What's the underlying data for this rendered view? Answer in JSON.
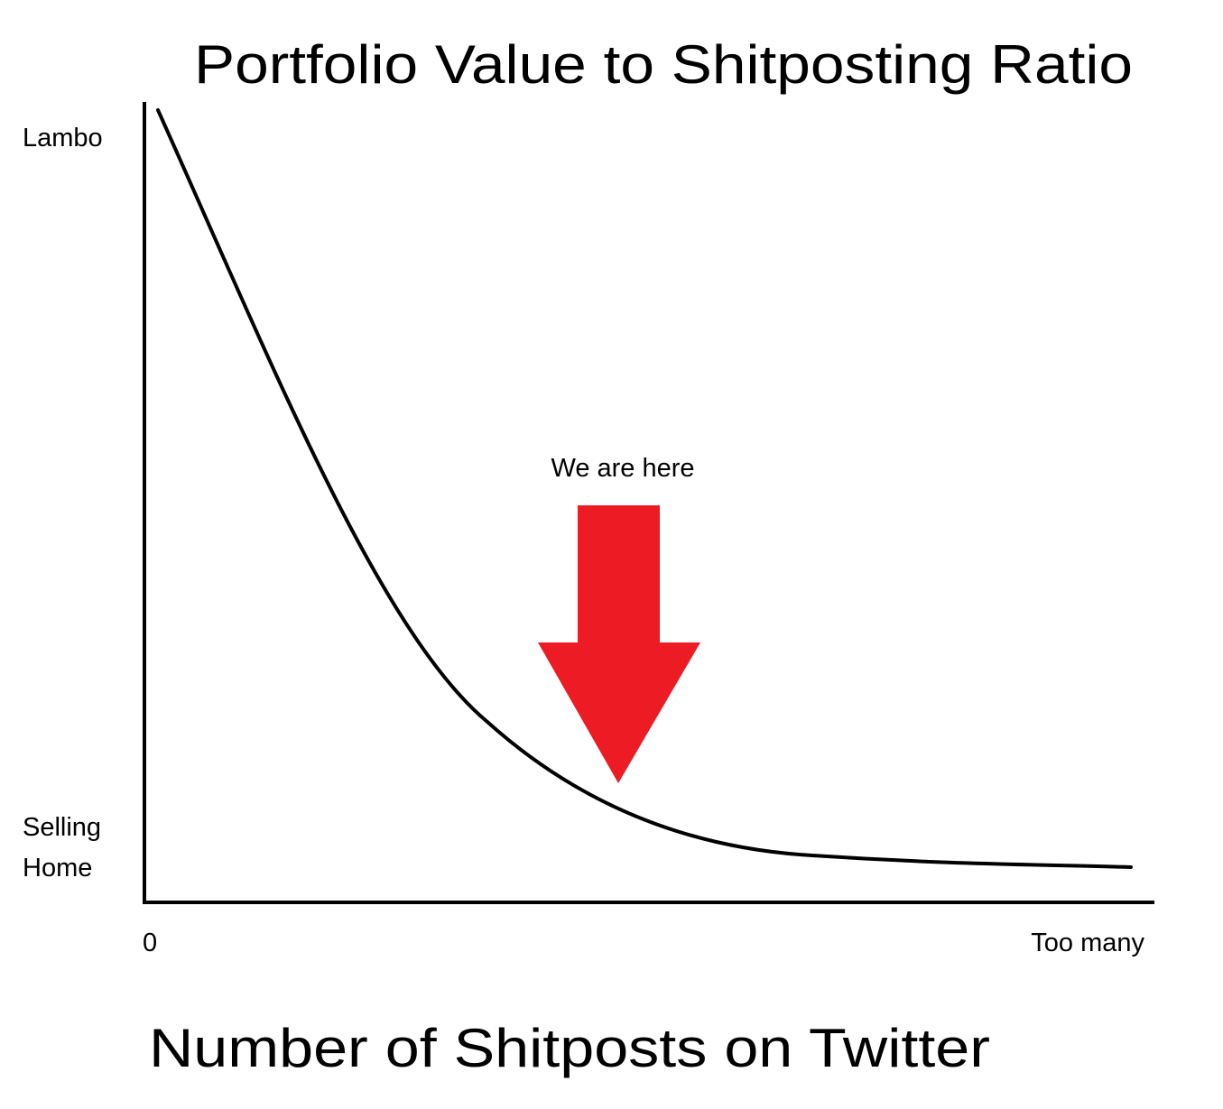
{
  "title": "Portfolio Value to Shitposting Ratio",
  "y_labels": {
    "top": "Lambo",
    "bottom": [
      "Selling",
      "Home"
    ]
  },
  "x_labels": {
    "left": "0",
    "right": "Too many"
  },
  "annotation": "We are here",
  "x_axis_title": "Number of Shitposts on Twitter"
}
